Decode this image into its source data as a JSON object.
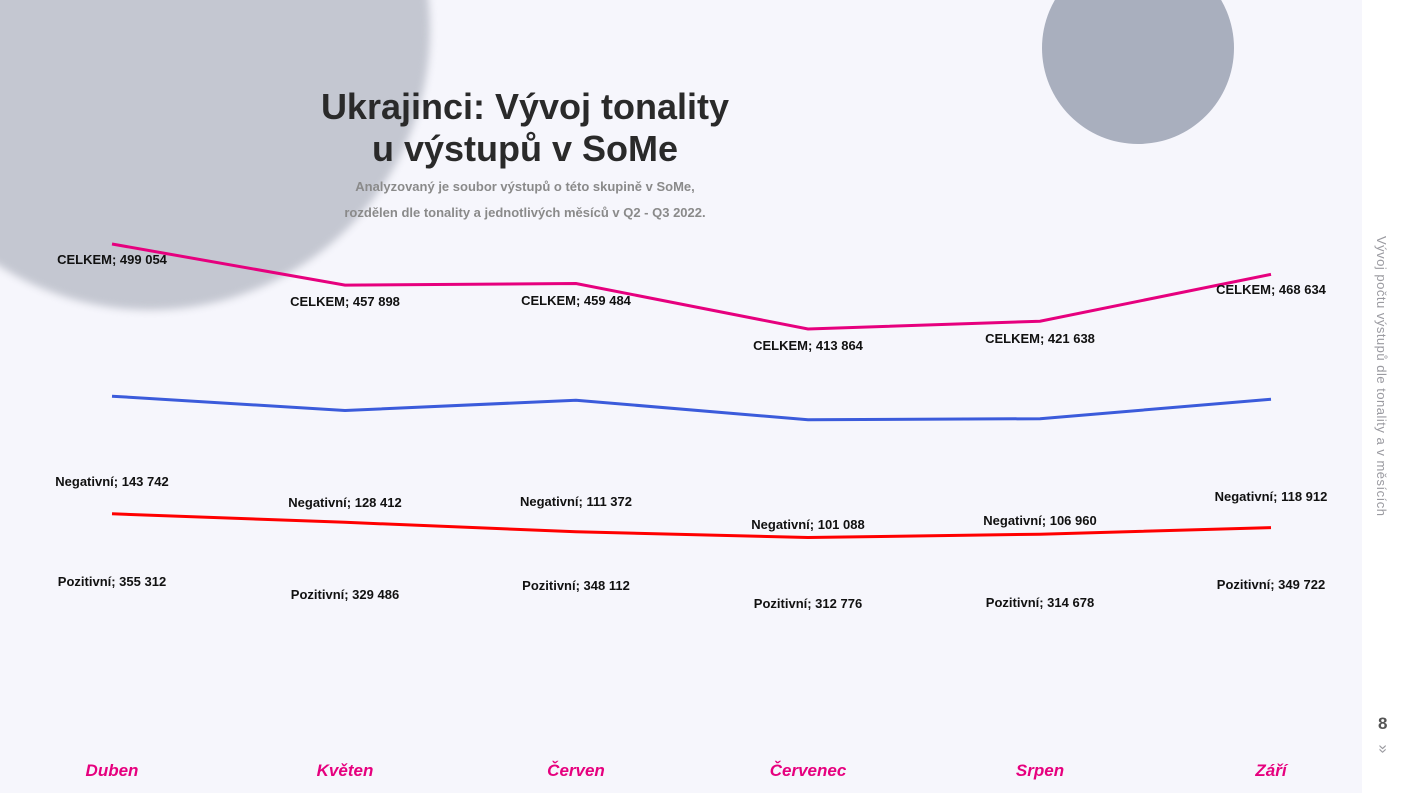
{
  "title_line1": "Ukrajinci: Vývoj tonality",
  "title_line2": "u výstupů v SoMe",
  "subtitle_line1": "Analyzovaný je soubor výstupů o této skupině v SoMe,",
  "subtitle_line2": "rozdělen dle tonality a jednotlivých měsíců v Q2 - Q3 2022.",
  "side_caption": "Vývoj počtu výstupů dle tonality a v měsících",
  "page_number": "8",
  "next_icon": "double-chevron-down-icon",
  "chart_data": {
    "type": "line",
    "title": "Ukrajinci: Vývoj tonality u výstupů v SoMe",
    "categories": [
      "Duben",
      "Květen",
      "Červen",
      "Červenec",
      "Srpen",
      "Září"
    ],
    "series": [
      {
        "name": "CELKEM",
        "color": "#e6007e",
        "values": [
          499054,
          457898,
          459484,
          413864,
          421638,
          468634
        ],
        "labels": [
          "CELKEM; 499 054",
          "CELKEM; 457 898",
          "CELKEM; 459 484",
          "CELKEM; 413 864",
          "CELKEM; 421 638",
          "CELKEM; 468 634"
        ]
      },
      {
        "name": "Negativní",
        "color": "#ff0000",
        "values": [
          143742,
          128412,
          111372,
          101088,
          106960,
          118912
        ],
        "labels": [
          "Negativní; 143 742",
          "Negativní; 128 412",
          "Negativní; 111 372",
          "Negativní; 101 088",
          "Negativní; 106 960",
          "Negativní; 118 912"
        ]
      },
      {
        "name": "Pozitivní",
        "color": "#3b5bdb",
        "values": [
          355312,
          329486,
          348112,
          312776,
          314678,
          349722
        ],
        "labels": [
          "Pozitivní; 355 312",
          "Pozitivní; 329 486",
          "Pozitivní; 348 112",
          "Pozitivní; 312 776",
          "Pozitivní; 314 678",
          "Pozitivní; 349 722"
        ]
      }
    ],
    "axis_label_color": "#e6007e",
    "grid": false,
    "legend": "none"
  }
}
